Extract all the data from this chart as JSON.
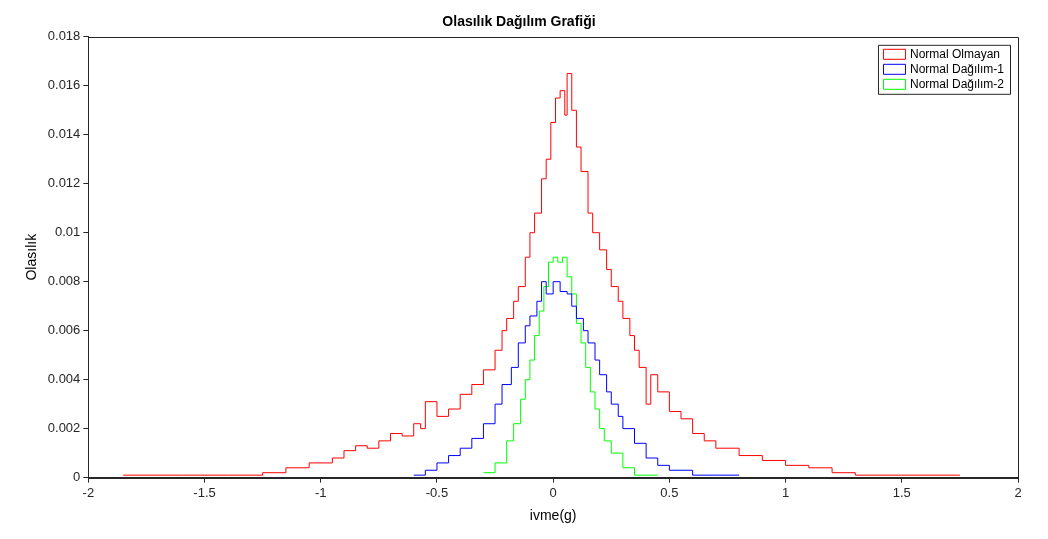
{
  "chart_data": {
    "type": "step",
    "title": "Olasılık Dağılım Grafiği",
    "xlabel": "ivme(g)",
    "ylabel": "Olasılık",
    "xlim": [
      -2,
      2
    ],
    "xticks": [
      -2,
      -1.5,
      -1,
      -0.5,
      0,
      0.5,
      1,
      1.5,
      2
    ],
    "ylim": [
      0,
      0.018
    ],
    "yticks": [
      0,
      0.002,
      0.004,
      0.006,
      0.008,
      0.01,
      0.012,
      0.014,
      0.016,
      0.018
    ],
    "grid": false,
    "legend": "top right",
    "marker": "none",
    "line_style": "solid",
    "series": [
      {
        "name": "Normal Olmayan",
        "color": "#ff0000",
        "x": [
          -1.85,
          -1.6,
          -1.4,
          -1.25,
          -1.15,
          -1.05,
          -0.95,
          -0.9,
          -0.85,
          -0.8,
          -0.75,
          -0.7,
          -0.65,
          -0.6,
          -0.57,
          -0.55,
          -0.5,
          -0.45,
          -0.4,
          -0.35,
          -0.3,
          -0.25,
          -0.22,
          -0.2,
          -0.17,
          -0.15,
          -0.12,
          -0.1,
          -0.08,
          -0.05,
          -0.03,
          -0.01,
          0.01,
          0.03,
          0.05,
          0.06,
          0.08,
          0.1,
          0.12,
          0.15,
          0.17,
          0.2,
          0.23,
          0.25,
          0.28,
          0.3,
          0.33,
          0.35,
          0.37,
          0.4,
          0.42,
          0.45,
          0.5,
          0.55,
          0.6,
          0.65,
          0.7,
          0.8,
          0.9,
          1.0,
          1.1,
          1.2,
          1.3,
          1.5,
          1.75
        ],
        "values": [
          0.0001,
          0.0001,
          0.0001,
          0.0002,
          0.0004,
          0.0006,
          0.0008,
          0.0011,
          0.0013,
          0.0012,
          0.0015,
          0.0018,
          0.0017,
          0.0022,
          0.002,
          0.0031,
          0.0025,
          0.0028,
          0.0034,
          0.0038,
          0.0044,
          0.0052,
          0.006,
          0.0065,
          0.0072,
          0.0078,
          0.009,
          0.01,
          0.0108,
          0.0122,
          0.013,
          0.0145,
          0.0155,
          0.0158,
          0.0148,
          0.0165,
          0.015,
          0.0135,
          0.0125,
          0.0108,
          0.01,
          0.0093,
          0.0085,
          0.0078,
          0.0072,
          0.0065,
          0.0058,
          0.0052,
          0.0045,
          0.003,
          0.0042,
          0.0035,
          0.0027,
          0.0024,
          0.0018,
          0.0015,
          0.0012,
          0.0009,
          0.0007,
          0.0005,
          0.0004,
          0.0002,
          0.0001,
          0.0001,
          0.0001
        ]
      },
      {
        "name": "Normal Dağılım-1",
        "color": "#0000ff",
        "x": [
          -0.6,
          -0.55,
          -0.5,
          -0.45,
          -0.4,
          -0.35,
          -0.3,
          -0.25,
          -0.22,
          -0.18,
          -0.15,
          -0.12,
          -0.1,
          -0.07,
          -0.05,
          -0.03,
          0,
          0.03,
          0.06,
          0.08,
          0.1,
          0.13,
          0.15,
          0.18,
          0.2,
          0.23,
          0.25,
          0.28,
          0.3,
          0.35,
          0.4,
          0.45,
          0.5,
          0.6,
          0.7,
          0.8
        ],
        "values": [
          0.0001,
          0.0003,
          0.0006,
          0.0009,
          0.0012,
          0.0016,
          0.0022,
          0.003,
          0.0038,
          0.0045,
          0.0055,
          0.0062,
          0.0066,
          0.0072,
          0.008,
          0.0075,
          0.008,
          0.0076,
          0.0075,
          0.007,
          0.0065,
          0.006,
          0.0055,
          0.0048,
          0.0042,
          0.0035,
          0.003,
          0.0025,
          0.002,
          0.0014,
          0.0008,
          0.0005,
          0.0003,
          0.0001,
          0.0001,
          0.0001
        ]
      },
      {
        "name": "Normal Dağılım-2",
        "color": "#00ff00",
        "x": [
          -0.3,
          -0.25,
          -0.2,
          -0.17,
          -0.14,
          -0.12,
          -0.1,
          -0.08,
          -0.06,
          -0.04,
          -0.02,
          0,
          0.02,
          0.04,
          0.06,
          0.08,
          0.1,
          0.12,
          0.14,
          0.16,
          0.18,
          0.2,
          0.22,
          0.25,
          0.3,
          0.35,
          0.45
        ],
        "values": [
          0.0002,
          0.0006,
          0.0015,
          0.0022,
          0.0032,
          0.004,
          0.0048,
          0.0058,
          0.0068,
          0.0078,
          0.0088,
          0.009,
          0.0088,
          0.009,
          0.0082,
          0.0075,
          0.0063,
          0.0055,
          0.0045,
          0.0035,
          0.0028,
          0.002,
          0.0015,
          0.001,
          0.0004,
          0.0001,
          0.0001
        ]
      }
    ]
  }
}
